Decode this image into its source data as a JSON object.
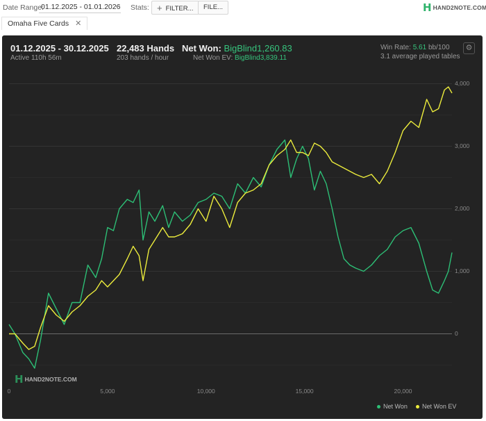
{
  "toolbar": {
    "date_range_label": "Date Range:",
    "date_range_value": "01.12.2025 - 01.01.2026",
    "stats_label": "Stats:",
    "filter_button": "FILTER...",
    "file_button": "FILE...",
    "brand": "HAND2NOTE.COM"
  },
  "tab": {
    "label": "Omaha Five Cards"
  },
  "summary": {
    "period": "01.12.2025 - 30.12.2025",
    "active": "Active 110h 56m",
    "hands": "22,483 Hands",
    "hands_rate": "203 hands / hour",
    "net_won_label": "Net Won:",
    "net_won_value": "BigBlind1,260.83",
    "net_won_ev_label": "Net Won  EV:",
    "net_won_ev_value": "BigBlind3,839.11",
    "win_rate_label": "Win Rate:",
    "win_rate_value": "5.61",
    "win_rate_unit": "bb/100",
    "tables": "3.1 average played tables"
  },
  "watermark": "HAND2NOTE.COM",
  "colors": {
    "net_won": "#2dbf76",
    "net_won_ev": "#ecec3c",
    "panel": "#232323"
  },
  "chart_data": {
    "type": "line",
    "x_ticks": [
      "0",
      "5,000",
      "10,000",
      "15,000",
      "20,000"
    ],
    "y_ticks": [
      "4,000",
      "3,000",
      "2,000",
      "1,000",
      "0"
    ],
    "xlim": [
      0,
      22483
    ],
    "ylim": [
      -750,
      4150
    ],
    "grid": true,
    "legend_position": "bottom-right",
    "series": [
      {
        "name": "Net Won",
        "x": [
          0,
          300,
          700,
          1000,
          1300,
          1600,
          2000,
          2400,
          2800,
          3200,
          3600,
          4000,
          4400,
          4700,
          5000,
          5300,
          5600,
          6000,
          6300,
          6600,
          6800,
          7100,
          7400,
          7800,
          8100,
          8400,
          8800,
          9200,
          9600,
          10000,
          10400,
          10800,
          11200,
          11600,
          12000,
          12400,
          12800,
          13200,
          13600,
          14000,
          14300,
          14600,
          14900,
          15200,
          15500,
          15800,
          16100,
          16400,
          16700,
          17000,
          17300,
          17600,
          18000,
          18400,
          18800,
          19200,
          19600,
          20000,
          20400,
          20800,
          21200,
          21500,
          21800,
          22100,
          22300,
          22483
        ],
        "y": [
          150,
          0,
          -300,
          -400,
          -550,
          -100,
          650,
          400,
          150,
          500,
          500,
          1100,
          900,
          1200,
          1700,
          1650,
          2000,
          2150,
          2100,
          2300,
          1500,
          1950,
          1800,
          2050,
          1700,
          1950,
          1800,
          1900,
          2100,
          2150,
          2250,
          2200,
          2000,
          2400,
          2250,
          2500,
          2350,
          2700,
          2950,
          3100,
          2500,
          2800,
          3000,
          2800,
          2300,
          2600,
          2400,
          2000,
          1550,
          1200,
          1100,
          1050,
          1000,
          1100,
          1250,
          1350,
          1550,
          1650,
          1700,
          1450,
          1000,
          700,
          650,
          850,
          1000,
          1300
        ]
      },
      {
        "name": "Net Won  EV",
        "x": [
          0,
          300,
          700,
          1000,
          1300,
          1600,
          2000,
          2400,
          2800,
          3200,
          3600,
          4000,
          4400,
          4700,
          5000,
          5300,
          5600,
          6000,
          6300,
          6600,
          6800,
          7100,
          7400,
          7800,
          8100,
          8400,
          8800,
          9200,
          9600,
          10000,
          10400,
          10800,
          11200,
          11600,
          12000,
          12400,
          12800,
          13200,
          13600,
          14000,
          14300,
          14600,
          14900,
          15200,
          15500,
          15800,
          16100,
          16400,
          16700,
          17000,
          17300,
          17600,
          18000,
          18400,
          18800,
          19200,
          19600,
          20000,
          20400,
          20800,
          21200,
          21500,
          21800,
          22100,
          22300,
          22483
        ],
        "y": [
          0,
          0,
          -150,
          -250,
          -200,
          100,
          450,
          300,
          200,
          350,
          450,
          600,
          700,
          850,
          750,
          850,
          950,
          1200,
          1400,
          1250,
          850,
          1350,
          1500,
          1700,
          1550,
          1550,
          1600,
          1750,
          2000,
          1800,
          2200,
          2000,
          1700,
          2100,
          2250,
          2300,
          2400,
          2700,
          2850,
          2950,
          3100,
          2900,
          2900,
          2850,
          3050,
          3000,
          2900,
          2750,
          2700,
          2650,
          2600,
          2550,
          2500,
          2550,
          2400,
          2600,
          2900,
          3250,
          3400,
          3300,
          3750,
          3550,
          3600,
          3900,
          3950,
          3850
        ]
      }
    ]
  }
}
